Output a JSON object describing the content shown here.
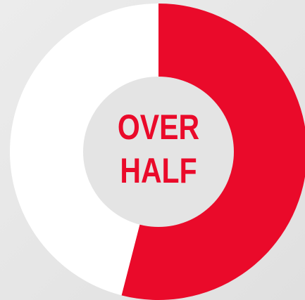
{
  "chart_data": {
    "type": "donut",
    "categories": [
      null,
      null
    ],
    "values": [
      54,
      46
    ],
    "colors": [
      "#ea0a2a",
      "#ffffff"
    ],
    "center_text": [
      "OVER",
      "HALF"
    ],
    "center_text_color": "#ea0a2a"
  }
}
